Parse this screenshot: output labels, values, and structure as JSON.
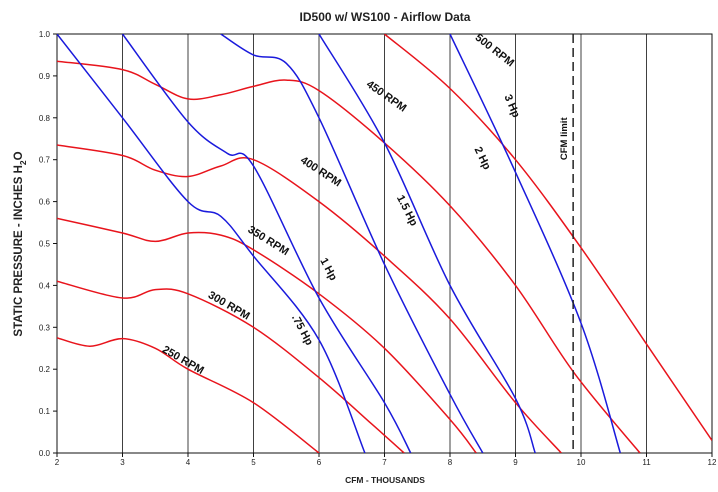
{
  "chart_data": {
    "type": "line",
    "title": "ID500 w/ WS100 - Airflow Data",
    "xlabel": "CFM - THOUSANDS",
    "ylabel": "STATIC PRESSURE - INCHES H2O",
    "xlim": [
      2,
      12
    ],
    "ylim": [
      0.0,
      1.0
    ],
    "x_ticks": [
      "2",
      "3",
      "4",
      "5",
      "6",
      "7",
      "8",
      "9",
      "10",
      "11",
      "12"
    ],
    "y_ticks": [
      "0.0",
      "0.1",
      "0.2",
      "0.3",
      "0.4",
      "0.5",
      "0.6",
      "0.7",
      "0.8",
      "0.9",
      "1.0"
    ],
    "grid": "vertical",
    "colors": {
      "rpm": "#e8141c",
      "hp": "#1a1adc",
      "limit": "#222222",
      "grid": "#111111"
    },
    "rpm_series": [
      {
        "name": "250 RPM",
        "points": [
          [
            2.0,
            0.275
          ],
          [
            2.5,
            0.255
          ],
          [
            3.0,
            0.273
          ],
          [
            3.5,
            0.25
          ],
          [
            4.0,
            0.2
          ],
          [
            5.0,
            0.12
          ],
          [
            6.0,
            0.0
          ]
        ]
      },
      {
        "name": "300 RPM",
        "points": [
          [
            2.0,
            0.41
          ],
          [
            3.0,
            0.37
          ],
          [
            3.5,
            0.39
          ],
          [
            4.0,
            0.38
          ],
          [
            5.0,
            0.3
          ],
          [
            6.0,
            0.18
          ],
          [
            6.8,
            0.07
          ],
          [
            7.3,
            0.0
          ]
        ]
      },
      {
        "name": "350 RPM",
        "points": [
          [
            2.0,
            0.56
          ],
          [
            3.0,
            0.525
          ],
          [
            3.5,
            0.505
          ],
          [
            4.0,
            0.525
          ],
          [
            4.5,
            0.52
          ],
          [
            5.0,
            0.485
          ],
          [
            6.0,
            0.38
          ],
          [
            7.0,
            0.25
          ],
          [
            8.0,
            0.08
          ],
          [
            8.4,
            0.0
          ]
        ]
      },
      {
        "name": "400 RPM",
        "points": [
          [
            2.0,
            0.735
          ],
          [
            3.0,
            0.71
          ],
          [
            3.5,
            0.675
          ],
          [
            4.0,
            0.66
          ],
          [
            4.5,
            0.685
          ],
          [
            5.0,
            0.7
          ],
          [
            6.0,
            0.6
          ],
          [
            7.0,
            0.47
          ],
          [
            8.0,
            0.32
          ],
          [
            9.0,
            0.12
          ],
          [
            9.7,
            0.0
          ]
        ]
      },
      {
        "name": "450 RPM",
        "points": [
          [
            2.0,
            0.935
          ],
          [
            3.0,
            0.915
          ],
          [
            3.5,
            0.88
          ],
          [
            4.0,
            0.845
          ],
          [
            4.5,
            0.855
          ],
          [
            5.0,
            0.875
          ],
          [
            5.5,
            0.89
          ],
          [
            6.0,
            0.865
          ],
          [
            7.0,
            0.74
          ],
          [
            8.0,
            0.59
          ],
          [
            9.0,
            0.4
          ],
          [
            9.9,
            0.19
          ],
          [
            10.9,
            0.0
          ]
        ]
      },
      {
        "name": "500 RPM",
        "points": [
          [
            7.0,
            1.0
          ],
          [
            8.0,
            0.87
          ],
          [
            9.0,
            0.7
          ],
          [
            10.0,
            0.49
          ],
          [
            11.0,
            0.26
          ],
          [
            12.0,
            0.03
          ]
        ]
      }
    ],
    "hp_series": [
      {
        "name": ".75 Hp",
        "points": [
          [
            2.0,
            1.0
          ],
          [
            3.0,
            0.8
          ],
          [
            4.0,
            0.6
          ],
          [
            4.5,
            0.565
          ],
          [
            5.0,
            0.47
          ],
          [
            6.0,
            0.27
          ],
          [
            6.7,
            0.0
          ]
        ]
      },
      {
        "name": "1 Hp",
        "points": [
          [
            3.0,
            1.0
          ],
          [
            4.0,
            0.79
          ],
          [
            4.6,
            0.715
          ],
          [
            5.0,
            0.685
          ],
          [
            6.0,
            0.37
          ],
          [
            7.0,
            0.12
          ],
          [
            7.4,
            0.0
          ]
        ]
      },
      {
        "name": "1.5 Hp",
        "points": [
          [
            4.5,
            1.0
          ],
          [
            5.0,
            0.95
          ],
          [
            5.5,
            0.93
          ],
          [
            6.0,
            0.8
          ],
          [
            7.0,
            0.45
          ],
          [
            8.0,
            0.14
          ],
          [
            8.5,
            0.0
          ]
        ]
      },
      {
        "name": "2 Hp",
        "points": [
          [
            6.0,
            1.0
          ],
          [
            7.0,
            0.74
          ],
          [
            8.0,
            0.4
          ],
          [
            9.0,
            0.13
          ],
          [
            9.3,
            0.0
          ]
        ]
      },
      {
        "name": "3 Hp",
        "points": [
          [
            8.0,
            1.0
          ],
          [
            9.0,
            0.67
          ],
          [
            10.0,
            0.31
          ],
          [
            10.6,
            0.0
          ]
        ]
      }
    ],
    "rpm_labels": [
      {
        "text": "250 RPM",
        "x": 3.9,
        "y": 0.215,
        "angle": 30
      },
      {
        "text": "300 RPM",
        "x": 4.6,
        "y": 0.345,
        "angle": 30
      },
      {
        "text": "350 RPM",
        "x": 5.2,
        "y": 0.5,
        "angle": 32
      },
      {
        "text": "400 RPM",
        "x": 6.0,
        "y": 0.665,
        "angle": 33
      },
      {
        "text": "450 RPM",
        "x": 7.0,
        "y": 0.845,
        "angle": 35
      },
      {
        "text": "500 RPM",
        "x": 8.65,
        "y": 0.955,
        "angle": 38
      }
    ],
    "hp_labels": [
      {
        "text": ".75 Hp",
        "x": 5.7,
        "y": 0.29,
        "angle": 62
      },
      {
        "text": "1 Hp",
        "x": 6.1,
        "y": 0.435,
        "angle": 62
      },
      {
        "text": "1.5 Hp",
        "x": 7.3,
        "y": 0.575,
        "angle": 63
      },
      {
        "text": "2 Hp",
        "x": 8.45,
        "y": 0.7,
        "angle": 64
      },
      {
        "text": "3 Hp",
        "x": 8.9,
        "y": 0.825,
        "angle": 67
      }
    ],
    "limit": {
      "label": "CFM limit",
      "x": 9.88
    }
  }
}
